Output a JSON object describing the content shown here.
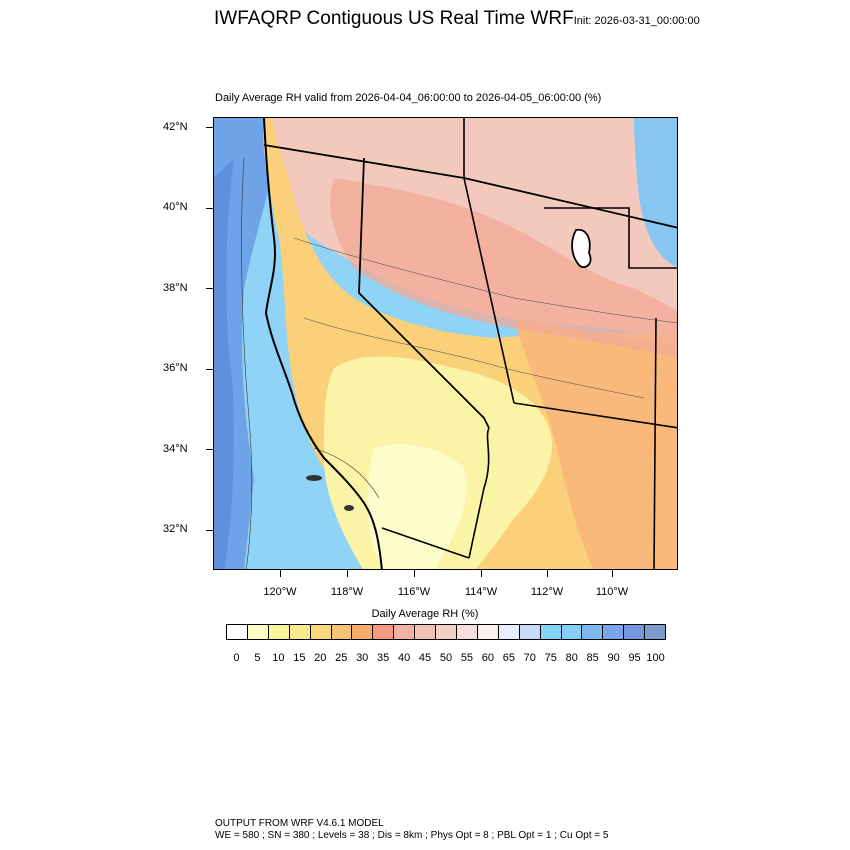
{
  "header": {
    "title": "IWFAQRP Contiguous US Real Time WRF",
    "init": "Init: 2026-03-31_00:00:00",
    "subtitle": "Daily Average RH valid from 2026-04-04_06:00:00 to 2026-04-05_06:00:00   (%)"
  },
  "axes": {
    "lat_labels": [
      "42°N",
      "40°N",
      "38°N",
      "36°N",
      "34°N",
      "32°N"
    ],
    "lon_labels": [
      "120°W",
      "118°W",
      "116°W",
      "114°W",
      "112°W",
      "110°W"
    ]
  },
  "colorbar": {
    "title": "Daily Average RH  (%)",
    "labels": [
      "0",
      "5",
      "10",
      "15",
      "20",
      "25",
      "30",
      "35",
      "40",
      "45",
      "50",
      "55",
      "60",
      "65",
      "70",
      "75",
      "80",
      "85",
      "90",
      "95",
      "100"
    ],
    "colors": [
      "#ffffff",
      "#fdfdc6",
      "#fbf5a0",
      "#f9eb8c",
      "#fbd77e",
      "#f9c276",
      "#f7ad6e",
      "#f79a82",
      "#f2b2a2",
      "#f1c2b6",
      "#f5d0c6",
      "#f8e0d8",
      "#fbf0ee",
      "#e8eefc",
      "#c8dcfa",
      "#86d4f7",
      "#86cef8",
      "#7dbaf0",
      "#7aa6ee",
      "#7396dd",
      "#7b9ecb"
    ]
  },
  "footer": {
    "line1": "OUTPUT FROM WRF V4.6.1 MODEL",
    "line2": "WE = 580 ; SN = 380 ; Levels = 38 ; Dis = 8km ; Phys Opt = 8 ; PBL Opt = 1 ; Cu Opt = 5"
  }
}
